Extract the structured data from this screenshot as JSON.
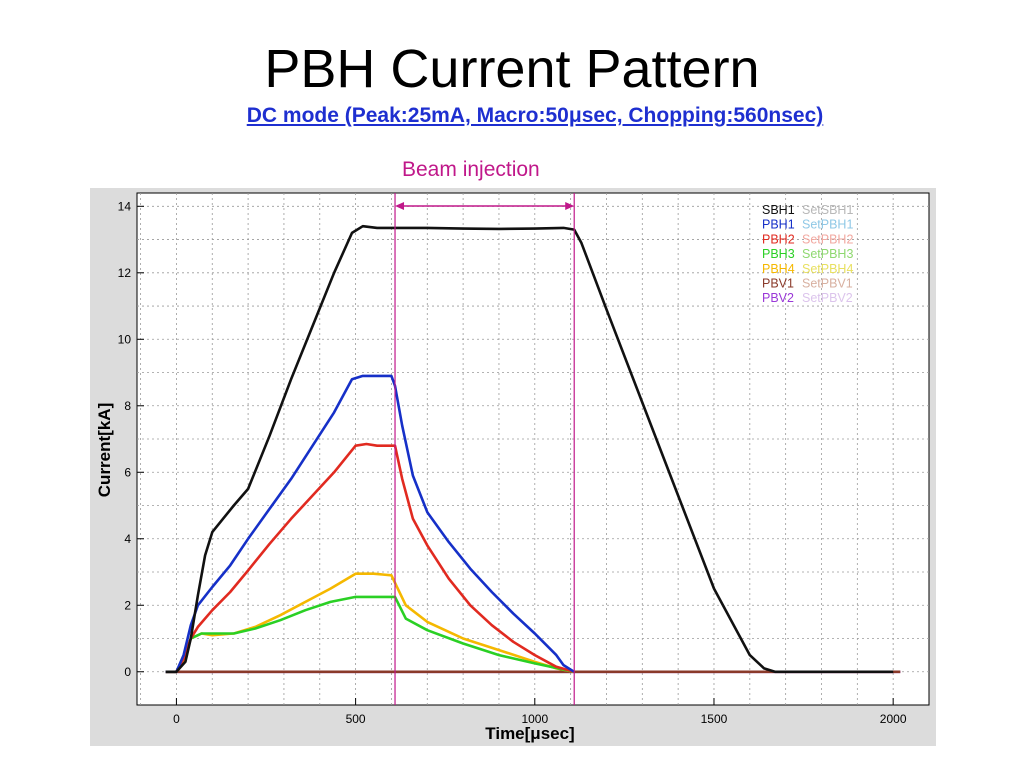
{
  "page": {
    "title": "PBH Current Pattern",
    "subtitle": "DC mode (Peak:25mA, Macro:50μsec, Chopping:560nsec)",
    "annotation": "Beam injection"
  },
  "chart_data": {
    "type": "line",
    "xlabel": "Time[μsec]",
    "ylabel": "Current[kA]",
    "xlim": [
      -110,
      2100
    ],
    "ylim": [
      -1,
      14.4
    ],
    "xticks": [
      0,
      500,
      1000,
      1500,
      2000
    ],
    "yticks": [
      0,
      2,
      4,
      6,
      8,
      10,
      12,
      14
    ],
    "grid": true,
    "legend": "top-right",
    "beam_injection": {
      "start": 610,
      "end": 1110
    },
    "colors": {
      "marker": "#c0188a",
      "frame_bg": "#dcdcdc",
      "grid": "#9a9a9a"
    },
    "series": [
      {
        "name": "SBH1",
        "set_name": "SetSBH1",
        "color": "#111111",
        "set_color": "#b8b8b8",
        "x": [
          -30,
          0,
          25,
          40,
          60,
          80,
          100,
          130,
          160,
          200,
          260,
          320,
          380,
          440,
          490,
          520,
          560,
          610,
          700,
          800,
          900,
          1000,
          1080,
          1110,
          1130,
          1200,
          1300,
          1400,
          1500,
          1600,
          1640,
          1670,
          1700,
          1800,
          2000
        ],
        "y": [
          0,
          0,
          0.3,
          1.0,
          2.3,
          3.5,
          4.2,
          4.6,
          5.0,
          5.5,
          7.1,
          8.8,
          10.4,
          12.0,
          13.2,
          13.4,
          13.35,
          13.35,
          13.35,
          13.33,
          13.32,
          13.33,
          13.35,
          13.3,
          12.9,
          10.9,
          8.1,
          5.3,
          2.5,
          0.5,
          0.1,
          0.0,
          0.0,
          0.0,
          0.0
        ]
      },
      {
        "name": "PBH1",
        "set_name": "SetPBH1",
        "color": "#1630c8",
        "set_color": "#8fc8e6",
        "x": [
          -30,
          0,
          20,
          40,
          60,
          100,
          150,
          200,
          260,
          320,
          380,
          440,
          490,
          520,
          560,
          600,
          610,
          630,
          660,
          700,
          760,
          820,
          880,
          940,
          1000,
          1060,
          1080,
          1110
        ],
        "y": [
          0,
          0,
          0.5,
          1.4,
          2.0,
          2.55,
          3.2,
          4.0,
          4.9,
          5.8,
          6.8,
          7.8,
          8.8,
          8.9,
          8.9,
          8.9,
          8.6,
          7.4,
          5.9,
          4.8,
          3.9,
          3.1,
          2.4,
          1.75,
          1.15,
          0.5,
          0.2,
          0.0
        ]
      },
      {
        "name": "PBH2",
        "set_name": "SetPBH2",
        "color": "#e12a20",
        "set_color": "#f2a8a0",
        "x": [
          -30,
          0,
          20,
          40,
          60,
          100,
          150,
          200,
          260,
          320,
          380,
          440,
          500,
          530,
          560,
          610,
          630,
          660,
          700,
          760,
          820,
          880,
          940,
          1000,
          1060,
          1110
        ],
        "y": [
          0,
          0,
          0.4,
          1.0,
          1.35,
          1.85,
          2.4,
          3.05,
          3.85,
          4.6,
          5.3,
          6.0,
          6.8,
          6.85,
          6.8,
          6.8,
          5.8,
          4.6,
          3.8,
          2.8,
          2.0,
          1.4,
          0.9,
          0.5,
          0.15,
          0.0
        ]
      },
      {
        "name": "PBH3",
        "set_name": "SetPBH3",
        "color": "#2ad024",
        "set_color": "#8fd870",
        "x": [
          -30,
          0,
          20,
          40,
          70,
          100,
          160,
          220,
          290,
          360,
          430,
          500,
          550,
          610,
          640,
          700,
          800,
          900,
          1000,
          1110
        ],
        "y": [
          0,
          0,
          0.4,
          1.0,
          1.15,
          1.15,
          1.15,
          1.3,
          1.55,
          1.85,
          2.1,
          2.25,
          2.25,
          2.25,
          1.6,
          1.25,
          0.85,
          0.5,
          0.25,
          0.0
        ]
      },
      {
        "name": "PBH4",
        "set_name": "SetPBH4",
        "color": "#f5b800",
        "set_color": "#e8e060",
        "x": [
          -30,
          0,
          20,
          40,
          70,
          100,
          160,
          220,
          290,
          360,
          430,
          500,
          550,
          600,
          640,
          700,
          800,
          900,
          1000,
          1060,
          1110
        ],
        "y": [
          0,
          0,
          0.35,
          1.0,
          1.15,
          1.1,
          1.15,
          1.35,
          1.7,
          2.1,
          2.5,
          2.95,
          2.95,
          2.9,
          2.0,
          1.5,
          1.0,
          0.65,
          0.3,
          0.1,
          0.0
        ]
      },
      {
        "name": "PBV1",
        "set_name": "SetPBV1",
        "color": "#8a3a2a",
        "set_color": "#d8b0a0",
        "x": [
          -30,
          2020
        ],
        "y": [
          0,
          0
        ]
      },
      {
        "name": "PBV2",
        "set_name": "SetPBV2",
        "color": "#9a38d8",
        "set_color": "#dcc4ec",
        "x": [
          -30,
          2020
        ],
        "y": [
          0,
          0
        ]
      }
    ]
  }
}
